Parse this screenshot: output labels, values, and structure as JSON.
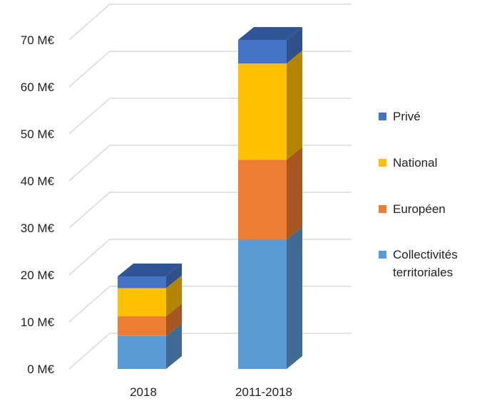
{
  "chart_data": {
    "type": "bar",
    "stacked": true,
    "three_d": true,
    "categories": [
      "2018",
      "2011-2018"
    ],
    "series": [
      {
        "name": "Collectivités territoriales",
        "legend_lines": [
          "Collectivités",
          "territoriales"
        ],
        "color": "#5B9BD5",
        "side_color": "#3F6B94",
        "top_color": "#4F86BC",
        "values": [
          7,
          27.5
        ]
      },
      {
        "name": "Européen",
        "legend_lines": [
          "Européen"
        ],
        "color": "#ED7D31",
        "side_color": "#A65721",
        "top_color": "#D06B28",
        "values": [
          4.2,
          17
        ]
      },
      {
        "name": "National",
        "legend_lines": [
          "National"
        ],
        "color": "#FFC000",
        "side_color": "#B38600",
        "top_color": "#E6AD00",
        "values": [
          6,
          20.5
        ]
      },
      {
        "name": "Privé",
        "legend_lines": [
          "Privé"
        ],
        "color": "#4472C4",
        "side_color": "#2F5089",
        "top_color": "#2F5597",
        "values": [
          2.5,
          5
        ]
      }
    ],
    "ylim": [
      0,
      70
    ],
    "yticks": [
      "0 M€",
      "10 M€",
      "20 M€",
      "30 M€",
      "40 M€",
      "50 M€",
      "60 M€",
      "70 M€"
    ],
    "title": "",
    "xlabel": "",
    "ylabel": "",
    "grid": true,
    "legend_position": "right",
    "gridline_color": "#D9D9D9"
  }
}
